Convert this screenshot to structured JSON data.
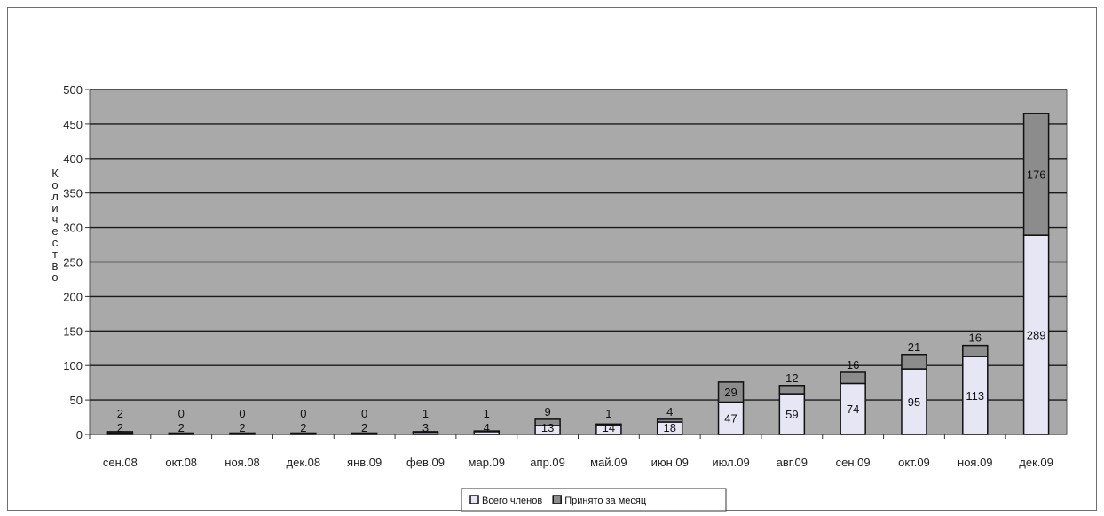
{
  "chart_data": {
    "type": "bar",
    "stacked": true,
    "categories": [
      "сен.08",
      "окт.08",
      "ноя.08",
      "дек.08",
      "янв.09",
      "фев.09",
      "мар.09",
      "апр.09",
      "май.09",
      "июн.09",
      "июл.09",
      "авг.09",
      "сен.09",
      "окт.09",
      "ноя.09",
      "дек.09"
    ],
    "series": [
      {
        "name": "Всего членов",
        "values": [
          2,
          2,
          2,
          2,
          2,
          3,
          4,
          13,
          14,
          18,
          47,
          59,
          74,
          95,
          113,
          289
        ]
      },
      {
        "name": "Принято за месяц",
        "values": [
          2,
          0,
          0,
          0,
          0,
          1,
          1,
          9,
          1,
          4,
          29,
          12,
          16,
          21,
          16,
          176
        ]
      }
    ],
    "ylabel": "Количество",
    "ylim": [
      0,
      500
    ],
    "yticks": [
      0,
      50,
      100,
      150,
      200,
      250,
      300,
      350,
      400,
      450,
      500
    ],
    "grid": true,
    "legend_position": "bottom",
    "colors": {
      "plot_bg": "#a9a9a9",
      "gridline": "#1a1a1a",
      "total_fill": "#e6e6f4",
      "monthly_fill": "#8c8c8c",
      "bar_stroke": "#111111"
    }
  }
}
